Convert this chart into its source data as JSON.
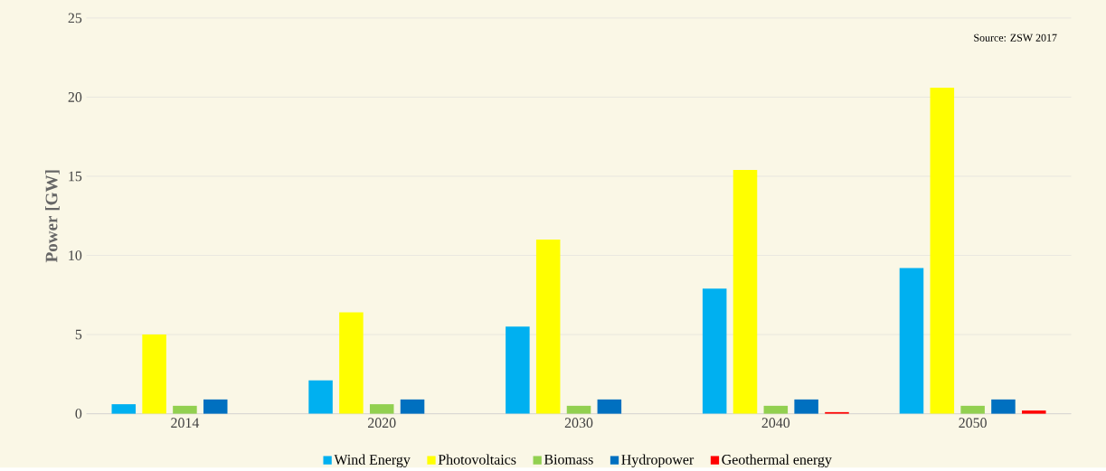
{
  "chart_data": {
    "type": "bar",
    "ylabel": "Power [GW]",
    "categories": [
      "2014",
      "2020",
      "2030",
      "2040",
      "2050"
    ],
    "series": [
      {
        "name": "Wind Energy",
        "color": "#00b0f0",
        "values": [
          0.6,
          2.1,
          5.5,
          7.9,
          9.2
        ]
      },
      {
        "name": "Photovoltaics",
        "color": "#ffff00",
        "values": [
          5.0,
          6.4,
          11.0,
          15.4,
          20.6
        ]
      },
      {
        "name": "Biomass",
        "color": "#92d050",
        "values": [
          0.5,
          0.6,
          0.5,
          0.5,
          0.5
        ]
      },
      {
        "name": "Hydropower",
        "color": "#0070c0",
        "values": [
          0.9,
          0.9,
          0.9,
          0.9,
          0.9
        ]
      },
      {
        "name": "Geothermal energy",
        "color": "#ff0000",
        "values": [
          null,
          null,
          null,
          0.1,
          0.2
        ]
      }
    ],
    "ylim": [
      0,
      25
    ],
    "yticks": [
      0,
      5,
      10,
      15,
      20,
      25
    ],
    "grid": "y",
    "legend": "bottom",
    "annotations": [
      "Source: ZSW 2017"
    ]
  }
}
